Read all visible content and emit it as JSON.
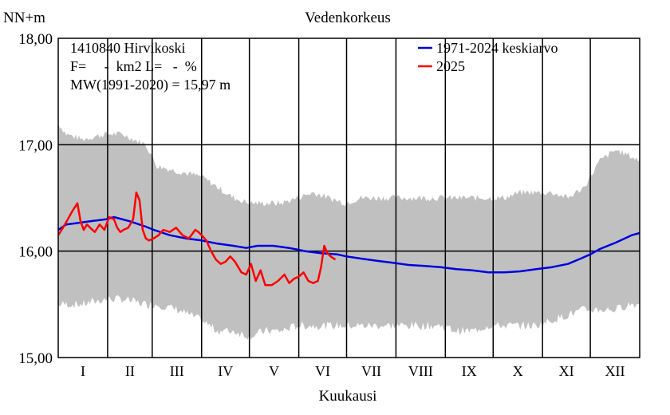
{
  "chart_data": {
    "type": "line",
    "title": "Vedenkorkeus",
    "xlabel": "Kuukausi",
    "ylabel": "NN+m",
    "ylim": [
      15.0,
      18.0
    ],
    "xlim": [
      0,
      365
    ],
    "grid": true,
    "yticks": [
      {
        "value": 15.0,
        "label": "15,00"
      },
      {
        "value": 16.0,
        "label": "16,00"
      },
      {
        "value": 17.0,
        "label": "17,00"
      },
      {
        "value": 18.0,
        "label": "18,00"
      }
    ],
    "months": [
      "I",
      "II",
      "III",
      "IV",
      "V",
      "VI",
      "VII",
      "VIII",
      "IX",
      "X",
      "XI",
      "XII"
    ],
    "month_starts": [
      0,
      31,
      59,
      90,
      120,
      151,
      181,
      212,
      243,
      273,
      304,
      334,
      365
    ],
    "info_lines": [
      "1410840 Hirvikoski",
      "F=     -  km2 L=   -  %",
      "MW(1991-2020) = 15,97 m"
    ],
    "legend_position": "top-right",
    "range_band": {
      "color": "#c0c0c0",
      "days": [
        0,
        5,
        15,
        30,
        40,
        55,
        62,
        75,
        90,
        100,
        110,
        120,
        130,
        140,
        150,
        160,
        170,
        180,
        190,
        200,
        210,
        220,
        230,
        240,
        250,
        260,
        270,
        280,
        290,
        300,
        310,
        320,
        330,
        340,
        350,
        358,
        365
      ],
      "max": [
        17.2,
        17.1,
        17.05,
        17.1,
        17.1,
        17.0,
        16.8,
        16.75,
        16.7,
        16.6,
        16.5,
        16.45,
        16.45,
        16.45,
        16.5,
        16.55,
        16.5,
        16.45,
        16.5,
        16.5,
        16.5,
        16.5,
        16.5,
        16.5,
        16.5,
        16.5,
        16.5,
        16.5,
        16.55,
        16.55,
        16.55,
        16.5,
        16.6,
        16.85,
        16.95,
        16.9,
        16.85
      ],
      "min": [
        15.5,
        15.5,
        15.5,
        15.55,
        15.55,
        15.5,
        15.5,
        15.45,
        15.35,
        15.25,
        15.25,
        15.2,
        15.25,
        15.25,
        15.3,
        15.3,
        15.3,
        15.3,
        15.3,
        15.3,
        15.3,
        15.3,
        15.3,
        15.3,
        15.25,
        15.25,
        15.3,
        15.3,
        15.3,
        15.3,
        15.35,
        15.4,
        15.45,
        15.45,
        15.45,
        15.5,
        15.5
      ]
    },
    "series": [
      {
        "name": "1971-2024 keskiarvo",
        "color": "#0000e0",
        "x": [
          0,
          5,
          10,
          20,
          30,
          35,
          45,
          55,
          60,
          70,
          80,
          90,
          100,
          110,
          118,
          125,
          135,
          145,
          155,
          165,
          175,
          181,
          190,
          200,
          210,
          220,
          230,
          240,
          250,
          260,
          270,
          280,
          290,
          300,
          310,
          320,
          328,
          334,
          340,
          350,
          360,
          365
        ],
        "y": [
          16.2,
          16.25,
          16.26,
          16.28,
          16.3,
          16.32,
          16.28,
          16.23,
          16.2,
          16.15,
          16.12,
          16.1,
          16.07,
          16.05,
          16.03,
          16.05,
          16.05,
          16.03,
          16.0,
          15.98,
          15.97,
          15.95,
          15.93,
          15.91,
          15.89,
          15.87,
          15.86,
          15.85,
          15.83,
          15.82,
          15.8,
          15.8,
          15.81,
          15.83,
          15.85,
          15.88,
          15.93,
          15.97,
          16.02,
          16.08,
          16.15,
          16.17
        ]
      },
      {
        "name": "2025",
        "color": "#ff0000",
        "x": [
          0,
          3,
          6,
          9,
          12,
          14,
          16,
          18,
          20,
          23,
          26,
          29,
          32,
          35,
          37,
          39,
          41,
          44,
          47,
          49,
          51,
          53,
          55,
          57,
          60,
          63,
          66,
          70,
          74,
          78,
          82,
          86,
          88,
          90,
          93,
          96,
          99,
          102,
          105,
          108,
          111,
          113,
          115,
          118,
          121,
          124,
          127,
          130,
          134,
          138,
          142,
          145,
          148,
          151,
          154,
          157,
          160,
          163,
          165,
          167,
          169,
          171,
          174
        ],
        "y": [
          16.15,
          16.22,
          16.3,
          16.38,
          16.45,
          16.28,
          16.2,
          16.25,
          16.22,
          16.18,
          16.25,
          16.2,
          16.32,
          16.3,
          16.22,
          16.18,
          16.2,
          16.22,
          16.3,
          16.55,
          16.48,
          16.2,
          16.12,
          16.1,
          16.12,
          16.15,
          16.2,
          16.18,
          16.22,
          16.15,
          16.12,
          16.2,
          16.18,
          16.15,
          16.1,
          16.0,
          15.92,
          15.88,
          15.9,
          15.95,
          15.9,
          15.85,
          15.8,
          15.78,
          15.88,
          15.72,
          15.82,
          15.68,
          15.68,
          15.72,
          15.78,
          15.7,
          15.74,
          15.76,
          15.8,
          15.72,
          15.7,
          15.72,
          15.85,
          16.05,
          15.98,
          15.95,
          15.92
        ]
      }
    ]
  }
}
